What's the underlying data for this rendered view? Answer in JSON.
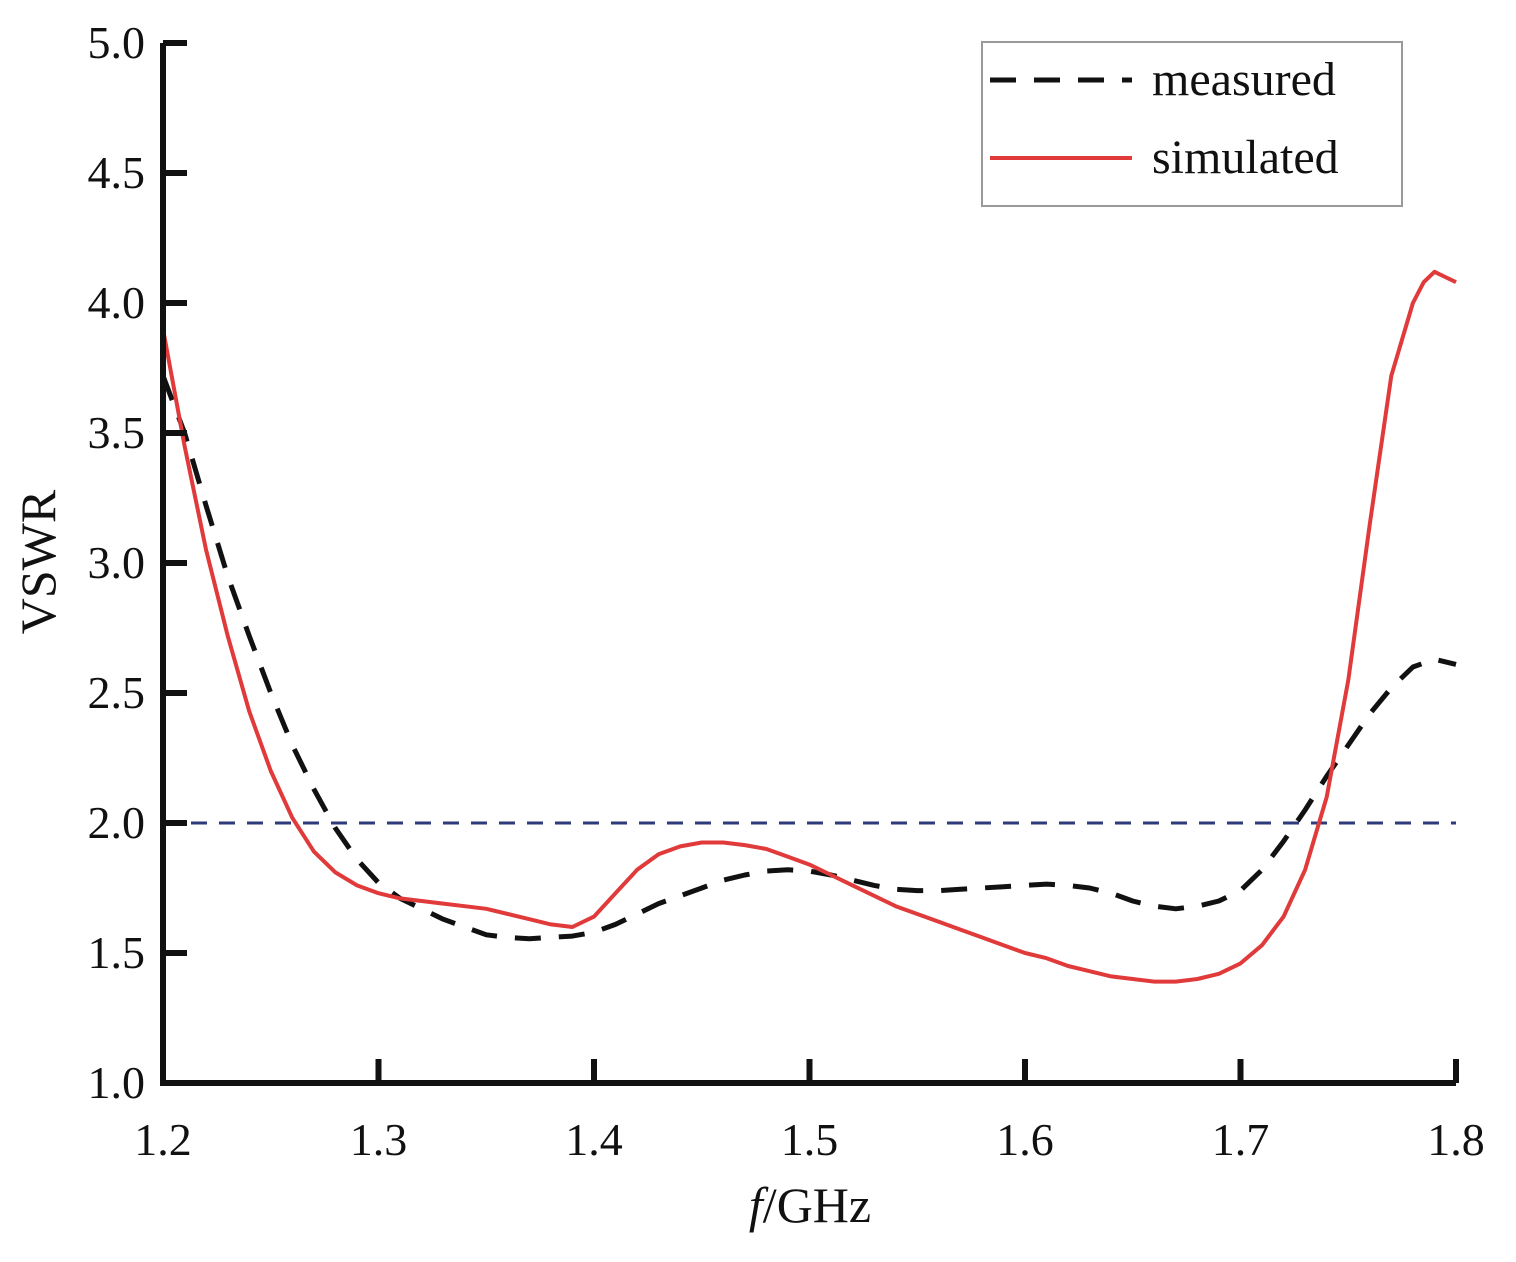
{
  "chart_data": {
    "type": "line",
    "xlabel_italic": "f",
    "xlabel_rest": "/GHz",
    "ylabel": "VSWR",
    "xlim": [
      1.2,
      1.8
    ],
    "ylim": [
      1.0,
      5.0
    ],
    "x_ticks": [
      "1.2",
      "1.3",
      "1.4",
      "1.5",
      "1.6",
      "1.7",
      "1.8"
    ],
    "y_ticks": [
      "1.0",
      "1.5",
      "2.0",
      "2.5",
      "3.0",
      "3.5",
      "4.0",
      "4.5",
      "5.0"
    ],
    "grid": false,
    "legend_position": "top-right",
    "reference_line": {
      "y": 2.0,
      "color": "#2e3a7a"
    },
    "series": [
      {
        "name": "measured",
        "style": "dashed",
        "color": "#111111",
        "x": [
          1.2,
          1.21,
          1.22,
          1.23,
          1.24,
          1.25,
          1.26,
          1.27,
          1.28,
          1.29,
          1.3,
          1.31,
          1.32,
          1.33,
          1.34,
          1.35,
          1.36,
          1.37,
          1.38,
          1.39,
          1.4,
          1.41,
          1.42,
          1.43,
          1.44,
          1.45,
          1.46,
          1.47,
          1.48,
          1.49,
          1.5,
          1.51,
          1.52,
          1.53,
          1.54,
          1.55,
          1.56,
          1.57,
          1.58,
          1.59,
          1.6,
          1.61,
          1.62,
          1.63,
          1.64,
          1.65,
          1.66,
          1.67,
          1.68,
          1.69,
          1.7,
          1.71,
          1.72,
          1.73,
          1.74,
          1.75,
          1.76,
          1.77,
          1.78,
          1.79,
          1.8
        ],
        "values": [
          3.72,
          3.5,
          3.22,
          2.95,
          2.72,
          2.5,
          2.3,
          2.13,
          1.98,
          1.86,
          1.77,
          1.71,
          1.67,
          1.63,
          1.6,
          1.57,
          1.56,
          1.555,
          1.56,
          1.565,
          1.58,
          1.61,
          1.65,
          1.69,
          1.72,
          1.75,
          1.78,
          1.8,
          1.815,
          1.82,
          1.815,
          1.8,
          1.78,
          1.76,
          1.745,
          1.74,
          1.74,
          1.745,
          1.75,
          1.755,
          1.76,
          1.765,
          1.76,
          1.75,
          1.73,
          1.7,
          1.68,
          1.67,
          1.68,
          1.7,
          1.74,
          1.82,
          1.93,
          2.05,
          2.18,
          2.3,
          2.42,
          2.52,
          2.6,
          2.63,
          2.61
        ]
      },
      {
        "name": "simulated",
        "style": "solid",
        "color": "#e03a3a",
        "x": [
          1.2,
          1.21,
          1.22,
          1.23,
          1.24,
          1.25,
          1.26,
          1.27,
          1.28,
          1.29,
          1.3,
          1.31,
          1.32,
          1.33,
          1.34,
          1.35,
          1.36,
          1.37,
          1.38,
          1.39,
          1.4,
          1.41,
          1.42,
          1.43,
          1.44,
          1.45,
          1.46,
          1.47,
          1.48,
          1.49,
          1.5,
          1.51,
          1.52,
          1.53,
          1.54,
          1.55,
          1.56,
          1.57,
          1.58,
          1.59,
          1.6,
          1.61,
          1.62,
          1.63,
          1.64,
          1.65,
          1.66,
          1.67,
          1.68,
          1.69,
          1.7,
          1.71,
          1.72,
          1.73,
          1.74,
          1.75,
          1.76,
          1.77,
          1.78,
          1.785,
          1.79,
          1.795,
          1.8
        ],
        "values": [
          3.9,
          3.45,
          3.05,
          2.72,
          2.43,
          2.2,
          2.02,
          1.89,
          1.81,
          1.76,
          1.73,
          1.71,
          1.7,
          1.69,
          1.68,
          1.67,
          1.65,
          1.63,
          1.61,
          1.6,
          1.64,
          1.73,
          1.82,
          1.88,
          1.91,
          1.925,
          1.925,
          1.915,
          1.9,
          1.87,
          1.84,
          1.8,
          1.76,
          1.72,
          1.68,
          1.65,
          1.62,
          1.59,
          1.56,
          1.53,
          1.5,
          1.48,
          1.45,
          1.43,
          1.41,
          1.4,
          1.39,
          1.39,
          1.4,
          1.42,
          1.46,
          1.53,
          1.64,
          1.82,
          2.1,
          2.55,
          3.15,
          3.72,
          4.0,
          4.08,
          4.12,
          4.1,
          4.08
        ]
      }
    ]
  }
}
